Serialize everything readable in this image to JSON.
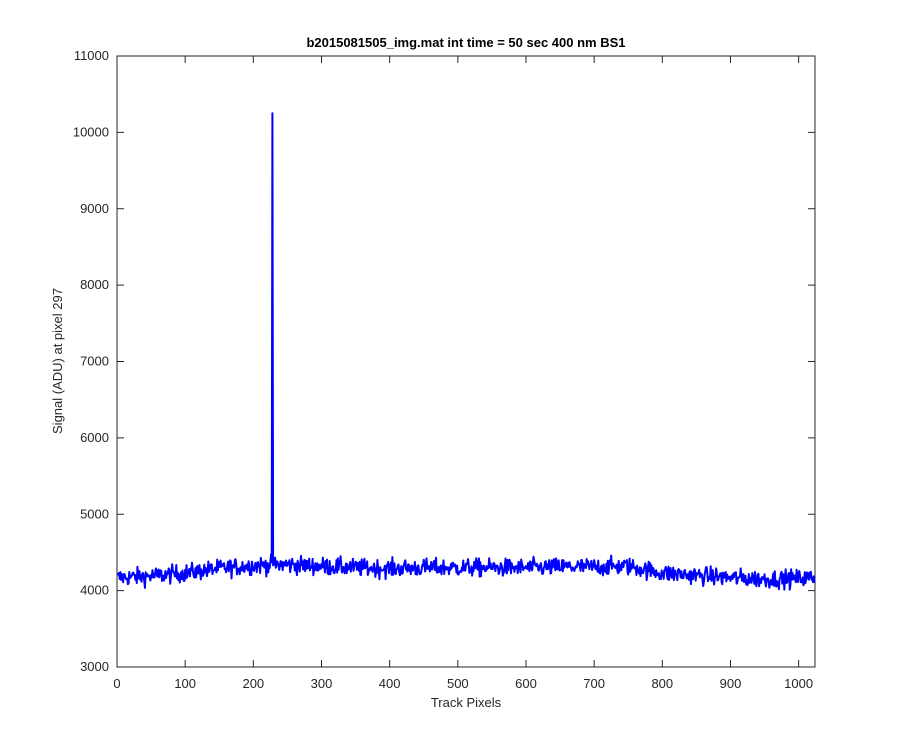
{
  "chart_data": {
    "type": "line",
    "title": "b2015081505_img.mat int time = 50 sec  400 nm BS1",
    "xlabel": "Track Pixels",
    "ylabel": "Signal (ADU) at pixel 297",
    "xlim": [
      0,
      1024
    ],
    "ylim": [
      3000,
      11000
    ],
    "xticks": [
      0,
      100,
      200,
      300,
      400,
      500,
      600,
      700,
      800,
      900,
      1000
    ],
    "yticks": [
      3000,
      4000,
      5000,
      6000,
      7000,
      8000,
      9000,
      10000,
      11000
    ],
    "xtick_labels": [
      "0",
      "100",
      "200",
      "300",
      "400",
      "500",
      "600",
      "700",
      "800",
      "900",
      "1000"
    ],
    "ytick_labels": [
      "3000",
      "4000",
      "5000",
      "6000",
      "7000",
      "8000",
      "9000",
      "10000",
      "11000"
    ],
    "grid": false,
    "line_color": "#0000ff",
    "baseline": {
      "x": [
        0,
        50,
        100,
        150,
        200,
        250,
        300,
        350,
        400,
        450,
        500,
        550,
        600,
        650,
        700,
        750,
        800,
        850,
        900,
        950,
        1000,
        1024
      ],
      "y": [
        4170,
        4190,
        4230,
        4290,
        4330,
        4340,
        4320,
        4300,
        4290,
        4300,
        4300,
        4300,
        4300,
        4310,
        4310,
        4320,
        4230,
        4200,
        4170,
        4150,
        4160,
        4170
      ]
    },
    "noise_amplitude": 110,
    "spike": {
      "x": 228,
      "y": 10250
    },
    "series": [
      {
        "values_note": "",
        "n_points": 1024
      }
    ]
  },
  "colors": {
    "line": "#0000ff",
    "axes": "#262626",
    "background": "#ffffff"
  }
}
